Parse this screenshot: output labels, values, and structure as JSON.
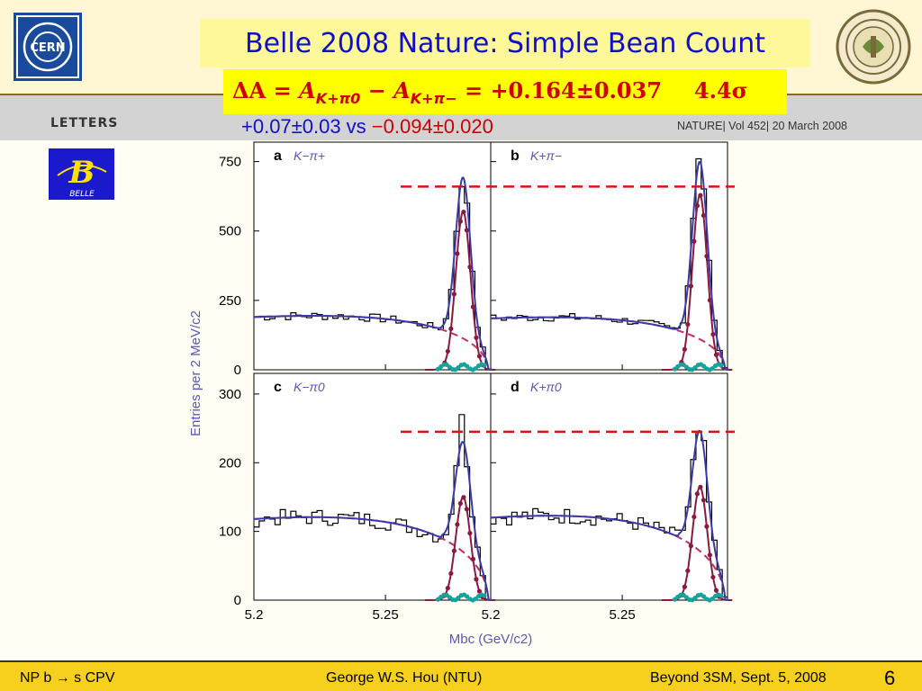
{
  "slide": {
    "title": "Belle 2008 Nature: Simple Bean Count",
    "formula": {
      "delta": "ΔA",
      "eq1": " = ",
      "a1": "A",
      "sub1": "K+π0",
      "minus": " − ",
      "a2": "A",
      "sub2": "K+π−",
      "eq2": " = +0.164±0.037",
      "sigma": "4.4σ"
    },
    "comparison": {
      "left": "+0.07±0.03 vs ",
      "right": "−0.094±0.020"
    },
    "letters_label": "LETTERS",
    "nature_ref": "NATURE| Vol 452| 20 March 2008",
    "belle_logo_text": "BELLE",
    "cern_logo_text": "CERN"
  },
  "footer": {
    "left": "NP b → s CPV",
    "center": "George W.S. Hou (NTU)",
    "right": "Beyond 3SM, Sept. 5, 2008",
    "page": "6"
  },
  "colors": {
    "title_text": "#1010cc",
    "title_bg": "#fff89a",
    "formula_text": "#d00000",
    "formula_bg": "#ffff00",
    "footer_bg": "#f7cf1d",
    "fit_total": "#3a3aa8",
    "signal": "#8b1a3e",
    "background_fit": "#c0306a",
    "other_bkg": "#17a39b",
    "dashed_ref": "#e01010",
    "axis_label": "#5a5ab4"
  },
  "chart_data": {
    "type": "line",
    "xlabel": "Mbc (GeV/c2)",
    "ylabel": "Entries per 2 MeV/c2",
    "xlim": [
      5.2,
      5.29
    ],
    "x_ticks": [
      "5.2",
      "5.25"
    ],
    "rows": [
      {
        "ylim": [
          0,
          820
        ],
        "y_ticks": [
          "0",
          "250",
          "500",
          "750"
        ]
      },
      {
        "ylim": [
          0,
          330
        ],
        "y_ticks": [
          "0",
          "100",
          "200",
          "300"
        ]
      }
    ],
    "panels": [
      {
        "letter": "a",
        "mode": "K−π+",
        "row": 0,
        "col": 0,
        "peak": 660,
        "bkg": 190,
        "signal_peak": 570
      },
      {
        "letter": "b",
        "mode": "K+π−",
        "row": 0,
        "col": 1,
        "peak": 760,
        "bkg": 185,
        "signal_peak": 630
      },
      {
        "letter": "c",
        "mode": "K−π0",
        "row": 1,
        "col": 0,
        "peak": 270,
        "bkg": 118,
        "signal_peak": 150
      },
      {
        "letter": "d",
        "mode": "K+π0",
        "row": 1,
        "col": 1,
        "peak": 245,
        "bkg": 120,
        "signal_peak": 165
      }
    ],
    "reference_lines": [
      {
        "row": 0,
        "value": 660
      },
      {
        "row": 1,
        "value": 245
      }
    ]
  }
}
